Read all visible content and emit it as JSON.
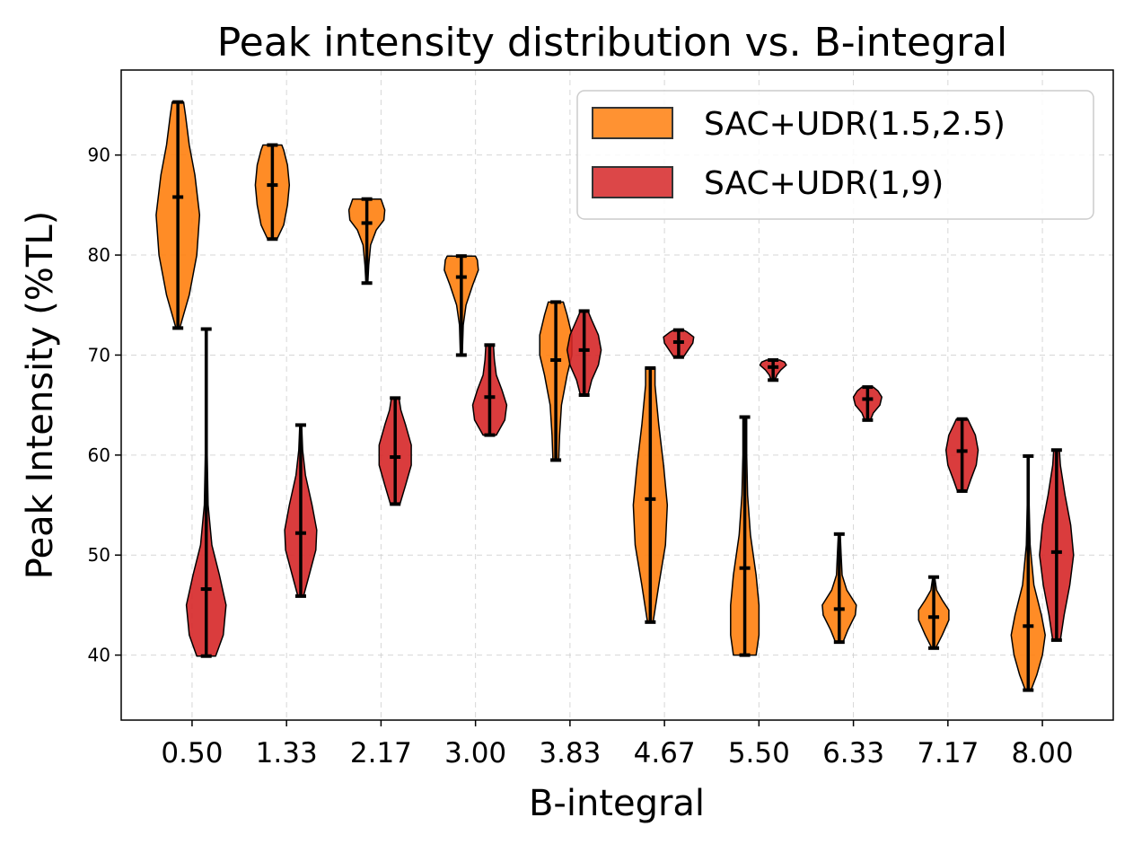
{
  "chart_data": {
    "type": "violin",
    "title": "Peak intensity distribution vs. B-integral",
    "xlabel": "B-integral",
    "ylabel": "Peak Intensity (%TL)",
    "ylim": [
      33.5,
      98.5
    ],
    "yticks": [
      40,
      50,
      60,
      70,
      80,
      90
    ],
    "ytick_labels": [
      "40",
      "50",
      "60",
      "70",
      "80",
      "90"
    ],
    "xlim": [
      -0.75,
      9.75
    ],
    "categories": [
      "0.50",
      "1.33",
      "2.17",
      "3.00",
      "3.83",
      "4.67",
      "5.50",
      "6.33",
      "7.17",
      "8.00"
    ],
    "grid": true,
    "legend_position": "top-right",
    "series": [
      {
        "name": "SAC+UDR(1.5,2.5)",
        "color": "#ff7f0e",
        "offset": -0.15,
        "violins": [
          {
            "min": 72.7,
            "max": 95.3,
            "median": 85.8,
            "widths": [
              [
                72.7,
                0.02
              ],
              [
                76,
                0.12
              ],
              [
                80,
                0.2
              ],
              [
                84,
                0.23
              ],
              [
                88,
                0.18
              ],
              [
                91,
                0.12
              ],
              [
                94,
                0.08
              ],
              [
                95.3,
                0.06
              ]
            ]
          },
          {
            "min": 81.6,
            "max": 91.0,
            "median": 87.0,
            "widths": [
              [
                81.6,
                0.05
              ],
              [
                83,
                0.12
              ],
              [
                85,
                0.16
              ],
              [
                87,
                0.18
              ],
              [
                89,
                0.16
              ],
              [
                90.5,
                0.12
              ],
              [
                91.0,
                0.1
              ]
            ]
          },
          {
            "min": 77.2,
            "max": 85.6,
            "median": 83.2,
            "widths": [
              [
                77.2,
                0.01
              ],
              [
                79,
                0.02
              ],
              [
                81,
                0.04
              ],
              [
                82.5,
                0.1
              ],
              [
                83.5,
                0.18
              ],
              [
                84.5,
                0.19
              ],
              [
                85.6,
                0.15
              ]
            ]
          },
          {
            "min": 70.0,
            "max": 79.9,
            "median": 77.8,
            "widths": [
              [
                70.0,
                0.01
              ],
              [
                73,
                0.02
              ],
              [
                75,
                0.05
              ],
              [
                77,
                0.12
              ],
              [
                78.5,
                0.18
              ],
              [
                79.5,
                0.17
              ],
              [
                79.9,
                0.15
              ]
            ]
          },
          {
            "min": 59.5,
            "max": 75.3,
            "median": 69.5,
            "widths": [
              [
                59.5,
                0.03
              ],
              [
                62,
                0.04
              ],
              [
                65,
                0.06
              ],
              [
                68,
                0.12
              ],
              [
                70,
                0.17
              ],
              [
                72,
                0.17
              ],
              [
                74,
                0.12
              ],
              [
                75.3,
                0.08
              ]
            ]
          },
          {
            "min": 43.3,
            "max": 68.7,
            "median": 55.6,
            "widths": [
              [
                43.3,
                0.03
              ],
              [
                47,
                0.09
              ],
              [
                51,
                0.16
              ],
              [
                55,
                0.18
              ],
              [
                59,
                0.14
              ],
              [
                63,
                0.09
              ],
              [
                67,
                0.05
              ],
              [
                68.7,
                0.05
              ]
            ]
          },
          {
            "min": 40.0,
            "max": 63.8,
            "median": 48.7,
            "widths": [
              [
                40.0,
                0.12
              ],
              [
                42,
                0.15
              ],
              [
                45,
                0.15
              ],
              [
                48,
                0.12
              ],
              [
                52,
                0.06
              ],
              [
                56,
                0.03
              ],
              [
                60,
                0.02
              ],
              [
                63.8,
                0.02
              ]
            ]
          },
          {
            "min": 41.3,
            "max": 52.1,
            "median": 44.6,
            "widths": [
              [
                41.3,
                0.04
              ],
              [
                42.5,
                0.09
              ],
              [
                44,
                0.17
              ],
              [
                45,
                0.18
              ],
              [
                46.5,
                0.08
              ],
              [
                48,
                0.03
              ],
              [
                50,
                0.02
              ],
              [
                52.1,
                0.01
              ]
            ]
          },
          {
            "min": 40.7,
            "max": 47.8,
            "median": 43.8,
            "widths": [
              [
                40.7,
                0.02
              ],
              [
                42,
                0.09
              ],
              [
                43.5,
                0.16
              ],
              [
                44.5,
                0.16
              ],
              [
                45.5,
                0.09
              ],
              [
                46.5,
                0.03
              ],
              [
                47.8,
                0.01
              ]
            ]
          },
          {
            "min": 36.5,
            "max": 59.9,
            "median": 42.9,
            "widths": [
              [
                36.5,
                0.03
              ],
              [
                38,
                0.09
              ],
              [
                40,
                0.15
              ],
              [
                42,
                0.18
              ],
              [
                44,
                0.14
              ],
              [
                47,
                0.06
              ],
              [
                51,
                0.02
              ],
              [
                55,
                0.01
              ],
              [
                59.9,
                0.01
              ]
            ]
          }
        ]
      },
      {
        "name": "SAC+UDR(1,9)",
        "color": "#d62728",
        "offset": 0.15,
        "violins": [
          {
            "min": 39.9,
            "max": 72.6,
            "median": 46.6,
            "widths": [
              [
                39.9,
                0.1
              ],
              [
                42,
                0.18
              ],
              [
                45,
                0.21
              ],
              [
                48,
                0.14
              ],
              [
                51,
                0.06
              ],
              [
                55,
                0.02
              ],
              [
                60,
                0.01
              ],
              [
                66,
                0.01
              ],
              [
                72.6,
                0.01
              ]
            ]
          },
          {
            "min": 45.9,
            "max": 63.0,
            "median": 52.2,
            "widths": [
              [
                45.9,
                0.03
              ],
              [
                48,
                0.09
              ],
              [
                50.5,
                0.16
              ],
              [
                52.5,
                0.17
              ],
              [
                55,
                0.12
              ],
              [
                58,
                0.05
              ],
              [
                60.5,
                0.02
              ],
              [
                63.0,
                0.01
              ]
            ]
          },
          {
            "min": 55.1,
            "max": 65.7,
            "median": 59.8,
            "widths": [
              [
                55.1,
                0.05
              ],
              [
                57,
                0.11
              ],
              [
                59,
                0.17
              ],
              [
                61,
                0.17
              ],
              [
                63,
                0.11
              ],
              [
                64.5,
                0.06
              ],
              [
                65.7,
                0.04
              ]
            ]
          },
          {
            "min": 62.0,
            "max": 71.0,
            "median": 65.8,
            "widths": [
              [
                62.0,
                0.07
              ],
              [
                63.5,
                0.16
              ],
              [
                65,
                0.18
              ],
              [
                66.5,
                0.13
              ],
              [
                68,
                0.07
              ],
              [
                69.5,
                0.05
              ],
              [
                71.0,
                0.04
              ]
            ]
          },
          {
            "min": 66.0,
            "max": 74.4,
            "median": 70.5,
            "widths": [
              [
                66.0,
                0.04
              ],
              [
                67.5,
                0.08
              ],
              [
                69,
                0.15
              ],
              [
                70.5,
                0.18
              ],
              [
                72,
                0.15
              ],
              [
                73.5,
                0.08
              ],
              [
                74.4,
                0.04
              ]
            ]
          },
          {
            "min": 69.8,
            "max": 72.5,
            "median": 71.3,
            "widths": [
              [
                69.8,
                0.05
              ],
              [
                70.5,
                0.1
              ],
              [
                71.2,
                0.15
              ],
              [
                71.8,
                0.16
              ],
              [
                72.3,
                0.09
              ],
              [
                72.5,
                0.05
              ]
            ]
          },
          {
            "min": 67.5,
            "max": 69.5,
            "median": 68.8,
            "widths": [
              [
                67.5,
                0.02
              ],
              [
                68,
                0.04
              ],
              [
                68.5,
                0.08
              ],
              [
                69,
                0.14
              ],
              [
                69.3,
                0.12
              ],
              [
                69.5,
                0.07
              ]
            ]
          },
          {
            "min": 63.5,
            "max": 66.8,
            "median": 65.6,
            "widths": [
              [
                63.5,
                0.03
              ],
              [
                64.2,
                0.06
              ],
              [
                65,
                0.13
              ],
              [
                65.8,
                0.15
              ],
              [
                66.4,
                0.11
              ],
              [
                66.8,
                0.06
              ]
            ]
          },
          {
            "min": 56.4,
            "max": 63.6,
            "median": 60.4,
            "widths": [
              [
                56.4,
                0.05
              ],
              [
                57.5,
                0.09
              ],
              [
                59,
                0.15
              ],
              [
                60.5,
                0.17
              ],
              [
                62,
                0.14
              ],
              [
                63.2,
                0.08
              ],
              [
                63.6,
                0.06
              ]
            ]
          },
          {
            "min": 41.5,
            "max": 60.5,
            "median": 50.3,
            "widths": [
              [
                41.5,
                0.04
              ],
              [
                44,
                0.08
              ],
              [
                47,
                0.14
              ],
              [
                50,
                0.18
              ],
              [
                53,
                0.15
              ],
              [
                56,
                0.09
              ],
              [
                59,
                0.04
              ],
              [
                60.5,
                0.03
              ]
            ]
          }
        ]
      }
    ]
  }
}
